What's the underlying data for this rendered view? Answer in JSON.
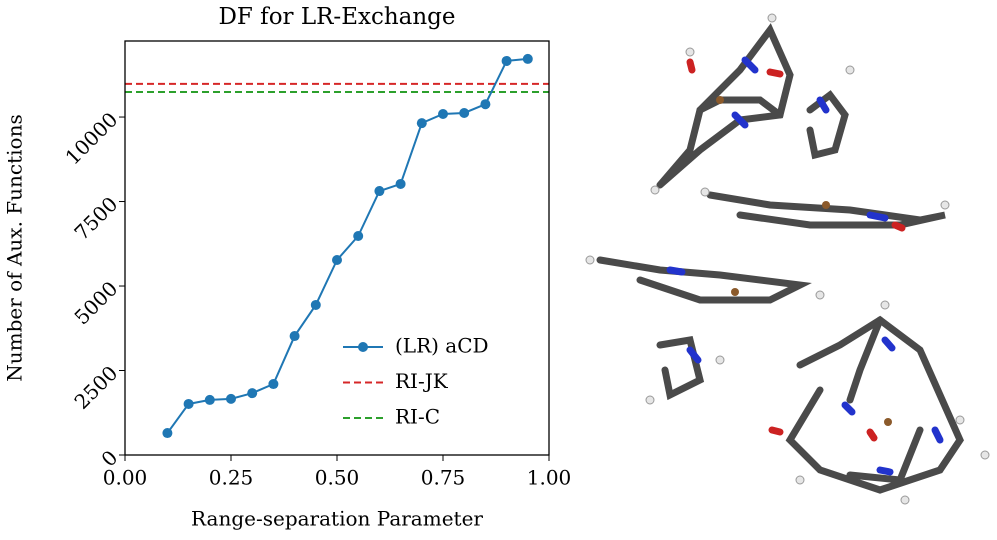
{
  "chart_data": {
    "type": "line",
    "title": "DF for LR-Exchange",
    "x_label": "Range-separation Parameter",
    "y_label": "Number of Aux. Functions",
    "x": [
      0.1,
      0.15,
      0.2,
      0.25,
      0.3,
      0.35,
      0.4,
      0.45,
      0.5,
      0.55,
      0.6,
      0.65,
      0.7,
      0.75,
      0.8,
      0.85,
      0.9,
      0.95
    ],
    "series": [
      {
        "name": "(LR) aCD",
        "color": "#1f77b4",
        "values": [
          650,
          1510,
          1630,
          1660,
          1830,
          2100,
          3520,
          4440,
          5770,
          6480,
          7810,
          8020,
          9820,
          10090,
          10120,
          10380,
          11660,
          11720
        ]
      }
    ],
    "hlines": [
      {
        "name": "RI-JK",
        "color": "#d62728",
        "value": 10980
      },
      {
        "name": "RI-C",
        "color": "#2ca02c",
        "value": 10740
      }
    ],
    "xlim": [
      0,
      1
    ],
    "ylim": [
      0,
      12250
    ],
    "xticks": [
      {
        "value": 0,
        "label": "0.00"
      },
      {
        "value": 0.25,
        "label": "0.25"
      },
      {
        "value": 0.5,
        "label": "0.50"
      },
      {
        "value": 0.75,
        "label": "0.75"
      },
      {
        "value": 1,
        "label": "1.00"
      }
    ],
    "yticks": [
      0,
      2500,
      5000,
      7500,
      10000
    ],
    "legend": "lower right"
  }
}
